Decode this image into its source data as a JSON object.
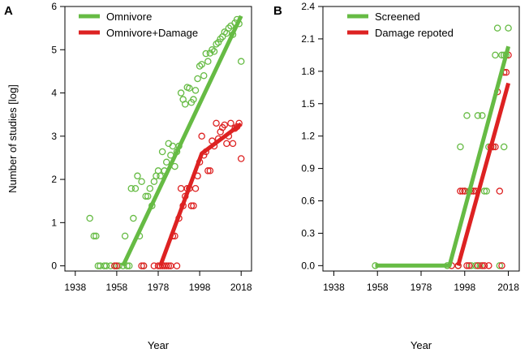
{
  "chart_data": [
    {
      "panel": "A",
      "type": "scatter",
      "xlabel": "Year",
      "ylabel": "Number of studies [log]",
      "xlim": [
        1933,
        2023
      ],
      "ylim": [
        -0.12,
        6
      ],
      "xticks": [
        "1938",
        "1958",
        "1978",
        "1998",
        "2018"
      ],
      "yticks": [
        "0",
        "1",
        "2",
        "3",
        "4",
        "5",
        "6"
      ],
      "legend": {
        "position": "top-left",
        "entries": [
          "Omnivore",
          "Omnivore+Damage"
        ]
      },
      "series": [
        {
          "name": "Omnivore",
          "color": "#66bb44",
          "points": [
            [
              1945,
              1.1
            ],
            [
              1947,
              0.69
            ],
            [
              1948,
              0.69
            ],
            [
              1949,
              0
            ],
            [
              1950,
              0
            ],
            [
              1952,
              0
            ],
            [
              1953,
              0
            ],
            [
              1955,
              0
            ],
            [
              1957,
              0
            ],
            [
              1958,
              0
            ],
            [
              1959,
              0
            ],
            [
              1961,
              0
            ],
            [
              1962,
              0.69
            ],
            [
              1963,
              0
            ],
            [
              1964,
              0
            ],
            [
              1965,
              1.79
            ],
            [
              1966,
              1.1
            ],
            [
              1967,
              1.79
            ],
            [
              1968,
              2.08
            ],
            [
              1969,
              0.69
            ],
            [
              1970,
              1.95
            ],
            [
              1971,
              0
            ],
            [
              1972,
              1.61
            ],
            [
              1973,
              1.61
            ],
            [
              1974,
              1.79
            ],
            [
              1975,
              1.39
            ],
            [
              1976,
              1.95
            ],
            [
              1977,
              2.08
            ],
            [
              1978,
              2.2
            ],
            [
              1979,
              2.08
            ],
            [
              1980,
              2.64
            ],
            [
              1981,
              2.2
            ],
            [
              1982,
              2.4
            ],
            [
              1983,
              2.83
            ],
            [
              1984,
              2.56
            ],
            [
              1985,
              2.77
            ],
            [
              1986,
              2.3
            ],
            [
              1987,
              2.64
            ],
            [
              1988,
              2.77
            ],
            [
              1989,
              4.0
            ],
            [
              1990,
              3.85
            ],
            [
              1991,
              3.74
            ],
            [
              1992,
              4.13
            ],
            [
              1993,
              4.11
            ],
            [
              1994,
              3.78
            ],
            [
              1995,
              3.85
            ],
            [
              1996,
              4.06
            ],
            [
              1997,
              4.33
            ],
            [
              1998,
              4.62
            ],
            [
              1999,
              4.66
            ],
            [
              2000,
              4.4
            ],
            [
              2001,
              4.91
            ],
            [
              2002,
              4.73
            ],
            [
              2003,
              4.92
            ],
            [
              2004,
              5.0
            ],
            [
              2005,
              4.96
            ],
            [
              2006,
              5.13
            ],
            [
              2007,
              5.17
            ],
            [
              2008,
              5.25
            ],
            [
              2009,
              5.3
            ],
            [
              2010,
              5.41
            ],
            [
              2011,
              5.38
            ],
            [
              2012,
              5.5
            ],
            [
              2013,
              5.55
            ],
            [
              2014,
              5.35
            ],
            [
              2015,
              5.62
            ],
            [
              2016,
              5.7
            ],
            [
              2017,
              5.6
            ],
            [
              2018,
              4.73
            ]
          ],
          "fit": [
            [
              1961,
              0
            ],
            [
              2018,
              5.78
            ]
          ]
        },
        {
          "name": "Omnivore+Damage",
          "color": "#dd2222",
          "points": [
            [
              1957,
              0
            ],
            [
              1958,
              0
            ],
            [
              1970,
              0
            ],
            [
              1971,
              0
            ],
            [
              1976,
              0
            ],
            [
              1978,
              0
            ],
            [
              1979,
              0
            ],
            [
              1980,
              0
            ],
            [
              1981,
              0
            ],
            [
              1982,
              0
            ],
            [
              1983,
              0
            ],
            [
              1984,
              0
            ],
            [
              1985,
              0.69
            ],
            [
              1986,
              0.69
            ],
            [
              1987,
              0
            ],
            [
              1988,
              1.1
            ],
            [
              1989,
              1.79
            ],
            [
              1990,
              1.39
            ],
            [
              1991,
              1.61
            ],
            [
              1992,
              1.79
            ],
            [
              1993,
              1.79
            ],
            [
              1994,
              1.39
            ],
            [
              1995,
              1.39
            ],
            [
              1996,
              1.79
            ],
            [
              1997,
              2.08
            ],
            [
              1998,
              2.4
            ],
            [
              1999,
              3.0
            ],
            [
              2000,
              2.56
            ],
            [
              2001,
              2.64
            ],
            [
              2002,
              2.2
            ],
            [
              2003,
              2.2
            ],
            [
              2004,
              2.89
            ],
            [
              2005,
              2.77
            ],
            [
              2006,
              3.3
            ],
            [
              2007,
              2.94
            ],
            [
              2008,
              3.1
            ],
            [
              2009,
              3.2
            ],
            [
              2010,
              3.26
            ],
            [
              2011,
              2.83
            ],
            [
              2012,
              3.0
            ],
            [
              2013,
              3.3
            ],
            [
              2014,
              2.83
            ],
            [
              2015,
              3.18
            ],
            [
              2016,
              3.22
            ],
            [
              2017,
              3.3
            ],
            [
              2018,
              2.48
            ]
          ],
          "fit": [
            [
              1979,
              0
            ],
            [
              1999,
              2.6
            ],
            [
              2018,
              3.28
            ]
          ]
        }
      ]
    },
    {
      "panel": "B",
      "type": "scatter",
      "xlabel": "Year",
      "ylabel": "",
      "xlim": [
        1933,
        2023
      ],
      "ylim": [
        -0.05,
        2.4
      ],
      "xticks": [
        "1938",
        "1958",
        "1978",
        "1998",
        "2018"
      ],
      "yticks": [
        "0.0",
        "0.3",
        "0.6",
        "0.9",
        "1.2",
        "1.5",
        "1.8",
        "2.1",
        "2.4"
      ],
      "legend": {
        "position": "top-left",
        "entries": [
          "Screened",
          "Damage repoted"
        ]
      },
      "series": [
        {
          "name": "Screened",
          "color": "#66bb44",
          "points": [
            [
              1957,
              0
            ],
            [
              1990,
              0
            ],
            [
              1995,
              0
            ],
            [
              1996,
              1.1
            ],
            [
              1998,
              0.69
            ],
            [
              1999,
              1.39
            ],
            [
              2000,
              0.69
            ],
            [
              2001,
              0
            ],
            [
              2002,
              0.69
            ],
            [
              2003,
              0
            ],
            [
              2004,
              1.39
            ],
            [
              2005,
              0
            ],
            [
              2006,
              1.39
            ],
            [
              2007,
              0.69
            ],
            [
              2008,
              0.69
            ],
            [
              2009,
              1.1
            ],
            [
              2010,
              1.1
            ],
            [
              2011,
              1.1
            ],
            [
              2012,
              1.95
            ],
            [
              2013,
              2.2
            ],
            [
              2014,
              0
            ],
            [
              2015,
              1.95
            ],
            [
              2016,
              1.95
            ],
            [
              2016,
              1.1
            ],
            [
              2017,
              1.95
            ],
            [
              2018,
              2.2
            ]
          ],
          "fit": [
            [
              1957,
              0
            ],
            [
              1991,
              0
            ],
            [
              2018,
              2.03
            ]
          ]
        },
        {
          "name": "Damage repoted",
          "color": "#dd2222",
          "points": [
            [
              1992,
              0
            ],
            [
              1995,
              0
            ],
            [
              1996,
              0.69
            ],
            [
              1997,
              0.69
            ],
            [
              1998,
              0.69
            ],
            [
              1999,
              0
            ],
            [
              2000,
              0
            ],
            [
              2001,
              0.69
            ],
            [
              2002,
              0.69
            ],
            [
              2003,
              0.69
            ],
            [
              2004,
              0
            ],
            [
              2006,
              0
            ],
            [
              2007,
              0
            ],
            [
              2009,
              0
            ],
            [
              2010,
              1.1
            ],
            [
              2011,
              1.1
            ],
            [
              2012,
              1.1
            ],
            [
              2013,
              1.61
            ],
            [
              2014,
              0.69
            ],
            [
              2015,
              0
            ],
            [
              2016,
              1.79
            ],
            [
              2017,
              1.79
            ],
            [
              2018,
              1.95
            ]
          ],
          "fit": [
            [
              1995,
              0
            ],
            [
              2018,
              1.69
            ]
          ]
        }
      ]
    }
  ]
}
